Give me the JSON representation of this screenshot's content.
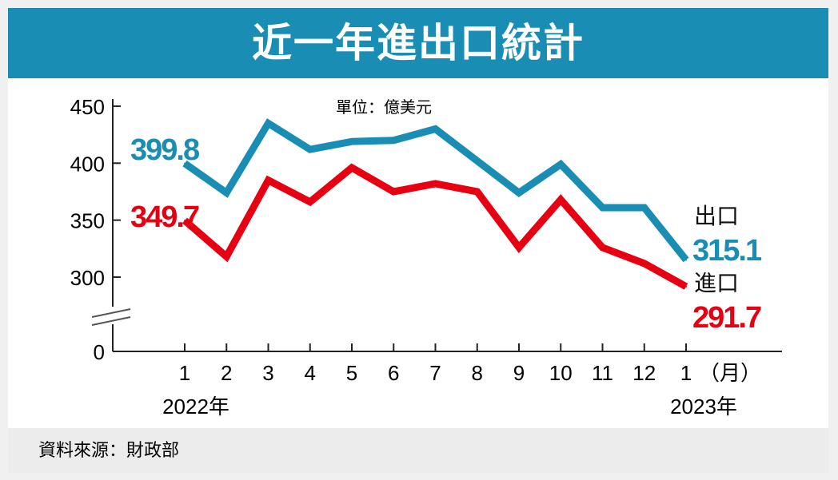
{
  "title": "近一年進出口統計",
  "unit": "單位：億美元",
  "source": "資料來源：財政部",
  "chart_data": {
    "type": "line",
    "title": "近一年進出口統計",
    "ylabel": "單位：億美元",
    "categories": [
      "1",
      "2",
      "3",
      "4",
      "5",
      "6",
      "7",
      "8",
      "9",
      "10",
      "11",
      "12",
      "1"
    ],
    "month_suffix": "（月）",
    "year_labels": [
      "2022年",
      "2023年"
    ],
    "yticks": [
      "450",
      "400",
      "350",
      "300",
      "0"
    ],
    "ylim": [
      0,
      450
    ],
    "axis_break": true,
    "series": [
      {
        "name": "出口",
        "color": "#1a8db5",
        "values": [
          399.8,
          374,
          435,
          412,
          419,
          420,
          430,
          402,
          374,
          399,
          361,
          361,
          315.1
        ],
        "start_label": "399.8",
        "end_label": "315.1"
      },
      {
        "name": "進口",
        "color": "#e60012",
        "values": [
          349.7,
          318,
          385,
          366,
          396,
          375,
          382,
          375,
          326,
          368,
          326,
          312,
          291.7
        ],
        "start_label": "349.7",
        "end_label": "291.7"
      }
    ]
  }
}
